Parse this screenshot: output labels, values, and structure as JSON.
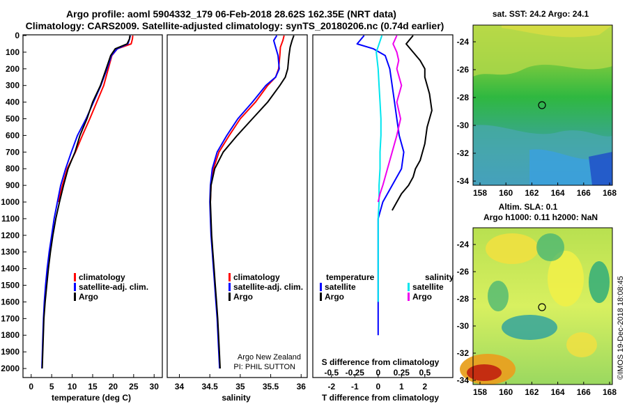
{
  "header": {
    "title_line1": "Argo profile: aoml 5904332_179 06-Feb-2018 28.62S 162.35E (NRT data)",
    "title_line2": "Climatology: CARS2009. Satellite-adjusted climatology: synTS_20180206.nc (0.74d earlier)"
  },
  "colors": {
    "climatology": "#ff0000",
    "satellite": "#0000ff",
    "argo": "#000000",
    "sat_salinity": "#00e5ee",
    "argo_salinity": "#ee00ee"
  },
  "chart_data": [
    {
      "type": "line",
      "id": "temperature",
      "xlabel": "temperature (deg C)",
      "xticks": [
        0,
        5,
        10,
        15,
        20,
        25,
        30
      ],
      "xlim": [
        -2,
        32
      ],
      "ylim": [
        0,
        2050
      ],
      "yticks": [
        0,
        100,
        200,
        300,
        400,
        500,
        600,
        700,
        800,
        900,
        1000,
        1100,
        1200,
        1300,
        1400,
        1500,
        1600,
        1700,
        1800,
        1900,
        2000
      ],
      "legend": [
        "climatology",
        "satellite-adj. clim.",
        "Argo"
      ],
      "series": [
        {
          "name": "climatology",
          "color": "#ff0000",
          "x": [
            24.8,
            24.7,
            24.4,
            21.0,
            19.7,
            18.8,
            17.7,
            16.0,
            14.3,
            12.5,
            10.8,
            8.8,
            7.6,
            6.6
          ],
          "y": [
            0,
            20,
            50,
            80,
            120,
            200,
            300,
            400,
            500,
            600,
            700,
            800,
            900,
            1000
          ]
        },
        {
          "name": "satellite-adj. clim.",
          "color": "#0000ff",
          "x": [
            24.2,
            24.0,
            23.6,
            21.0,
            19.6,
            18.5,
            17.0,
            15.2,
            13.4,
            11.3,
            9.8,
            8.4,
            7.2,
            6.4,
            5.6,
            5.0,
            4.4,
            3.9,
            3.5,
            3.2,
            3.0,
            2.8,
            2.6
          ],
          "y": [
            0,
            20,
            50,
            80,
            120,
            200,
            300,
            400,
            500,
            600,
            700,
            800,
            900,
            1000,
            1100,
            1200,
            1300,
            1400,
            1500,
            1600,
            1700,
            1850,
            2000
          ]
        },
        {
          "name": "Argo",
          "color": "#000000",
          "x": [
            24.1,
            24.0,
            23.4,
            20.5,
            19.4,
            18.3,
            16.9,
            15.0,
            13.6,
            11.9,
            10.7,
            9.0,
            7.9,
            6.9,
            6.0,
            5.3,
            4.7,
            4.2,
            3.8,
            3.4,
            3.1,
            2.9,
            2.7
          ],
          "y": [
            0,
            20,
            50,
            80,
            120,
            200,
            300,
            400,
            500,
            600,
            700,
            800,
            900,
            1000,
            1100,
            1200,
            1300,
            1400,
            1500,
            1600,
            1700,
            1850,
            2000
          ]
        }
      ]
    },
    {
      "type": "line",
      "id": "salinity",
      "xlabel": "salinity",
      "xticks": [
        34,
        34.5,
        35,
        35.5,
        36
      ],
      "xlim": [
        33.8,
        36.1
      ],
      "ylim": [
        0,
        2050
      ],
      "legend": [
        "climatology",
        "satellite-adj. clim.",
        "Argo"
      ],
      "annotation": [
        "Argo New Zealand",
        "PI: PHIL SUTTON"
      ],
      "series": [
        {
          "name": "climatology",
          "color": "#ff0000",
          "x": [
            35.72,
            35.7,
            35.66,
            35.65,
            35.63,
            35.58,
            35.45,
            35.25,
            35.0,
            34.82,
            34.65,
            34.56,
            34.52,
            34.51
          ],
          "y": [
            0,
            30,
            70,
            120,
            200,
            250,
            300,
            400,
            500,
            600,
            700,
            800,
            900,
            1000
          ]
        },
        {
          "name": "satellite-adj. clim.",
          "color": "#0000ff",
          "x": [
            35.6,
            35.55,
            35.58,
            35.62,
            35.64,
            35.58,
            35.42,
            35.2,
            34.96,
            34.78,
            34.62,
            34.54,
            34.51,
            34.5,
            34.51,
            34.52,
            34.54,
            34.56,
            34.58,
            34.6,
            34.62,
            34.64,
            34.66
          ],
          "y": [
            0,
            30,
            70,
            120,
            200,
            250,
            300,
            400,
            500,
            600,
            700,
            800,
            900,
            1000,
            1100,
            1200,
            1300,
            1400,
            1500,
            1600,
            1700,
            1850,
            2000
          ]
        },
        {
          "name": "Argo",
          "color": "#000000",
          "x": [
            35.88,
            35.85,
            35.82,
            35.8,
            35.78,
            35.74,
            35.65,
            35.45,
            35.2,
            34.95,
            34.72,
            34.58,
            34.52,
            34.51,
            34.52,
            34.53,
            34.55,
            34.57,
            34.59,
            34.61,
            34.63,
            34.65,
            34.67
          ],
          "y": [
            0,
            30,
            70,
            120,
            200,
            250,
            300,
            400,
            500,
            600,
            700,
            800,
            900,
            1000,
            1100,
            1200,
            1300,
            1400,
            1500,
            1600,
            1700,
            1850,
            2000
          ]
        }
      ]
    },
    {
      "type": "line",
      "id": "difference",
      "xlabel": "T difference from climatology",
      "xlabel_top": "S difference from climatology",
      "xticks": [
        -2,
        -1,
        0,
        1,
        2
      ],
      "sticks": [
        "-0.5",
        "-0.25",
        "0",
        "0.25",
        "0.5"
      ],
      "xlim": [
        -2.8,
        3.2
      ],
      "ylim": [
        0,
        2050
      ],
      "legend_left_title": "temperature",
      "legend_right_title": "salinity",
      "legend_left": [
        "satellite",
        "Argo"
      ],
      "legend_right": [
        "satellite",
        "Argo"
      ],
      "series": [
        {
          "name": "satellite",
          "quantity": "temperature",
          "color": "#0000ff",
          "x": [
            -0.6,
            -0.9,
            -0.2,
            0.3,
            0.5,
            0.6,
            0.7,
            0.8,
            0.9,
            1.1,
            1.0,
            0.6,
            0.2,
            0.0,
            0.0,
            0.0,
            0.0,
            0.0,
            0.0,
            0.0,
            0.0
          ],
          "y": [
            0,
            50,
            80,
            120,
            200,
            300,
            400,
            500,
            600,
            700,
            800,
            900,
            1000,
            1100,
            1200,
            1300,
            1400,
            1500,
            1600,
            1700,
            1800
          ]
        },
        {
          "name": "Argo",
          "quantity": "temperature",
          "color": "#000000",
          "x": [
            1.5,
            1.2,
            1.5,
            1.8,
            2.0,
            2.0,
            2.2,
            2.3,
            2.1,
            2.0,
            1.8,
            1.6,
            1.5,
            1.3,
            1.0,
            0.8,
            0.6
          ],
          "y": [
            0,
            50,
            100,
            150,
            200,
            250,
            350,
            450,
            550,
            650,
            750,
            800,
            850,
            900,
            950,
            1000,
            1050
          ]
        },
        {
          "name": "satellite",
          "quantity": "salinity",
          "color": "#00e5ee",
          "x": [
            0.04,
            -0.02,
            0.0,
            0.01,
            0.02,
            0.03,
            0.03,
            0.02,
            0.02,
            0.01,
            0.01,
            0.0,
            0.0,
            0.0,
            0.0,
            0.0,
            0.0
          ],
          "y": [
            0,
            100,
            200,
            300,
            400,
            500,
            600,
            700,
            800,
            900,
            1000,
            1100,
            1200,
            1300,
            1400,
            1500,
            1600
          ]
        },
        {
          "name": "Argo",
          "quantity": "salinity",
          "color": "#ee00ee",
          "x": [
            0.2,
            0.16,
            0.2,
            0.22,
            0.2,
            0.25,
            0.2,
            0.24,
            0.2,
            0.15,
            0.1,
            0.05,
            0.02,
            0.0
          ],
          "y": [
            0,
            50,
            100,
            150,
            200,
            300,
            400,
            500,
            600,
            700,
            800,
            900,
            950,
            1000
          ]
        }
      ]
    }
  ],
  "maps": {
    "sst": {
      "title": "sat. SST: 24.2 Argo: 24.1",
      "xticks": [
        "158",
        "160",
        "162",
        "164",
        "166",
        "168"
      ],
      "yticks": [
        "-24",
        "-26",
        "-28",
        "-30",
        "-32",
        "-34"
      ]
    },
    "sla": {
      "title_line1": "Altim. SLA: 0.1",
      "title_line2": "Argo h1000: 0.11 h2000: NaN",
      "xticks": [
        "158",
        "160",
        "162",
        "164",
        "166",
        "168"
      ],
      "yticks": [
        "-24",
        "-26",
        "-28",
        "-30",
        "-32",
        "-34"
      ]
    },
    "credit": "©IMOS 19-Dec-2018 18:08:45"
  }
}
